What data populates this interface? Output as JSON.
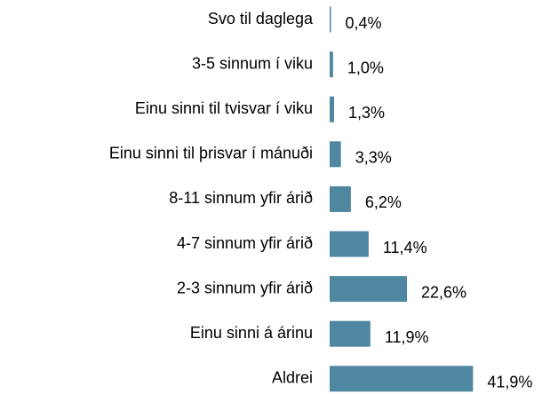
{
  "chart_data": {
    "type": "bar",
    "orientation": "horizontal",
    "color": "#4f86a0",
    "categories": [
      "Svo til daglega",
      "3-5 sinnum í viku",
      "Einu sinni til tvisvar í viku",
      "Einu sinni til þrisvar í mánuði",
      "8-11 sinnum yfir árið",
      "4-7 sinnum yfir árið",
      "2-3 sinnum yfir árið",
      "Einu sinni á árinu",
      "Aldrei"
    ],
    "values": [
      0.4,
      1.0,
      1.3,
      3.3,
      6.2,
      11.4,
      22.6,
      11.9,
      41.9
    ],
    "value_labels": [
      "0,4%",
      "1,0%",
      "1,3%",
      "3,3%",
      "6,2%",
      "11,4%",
      "22,6%",
      "11,9%",
      "41,9%"
    ]
  }
}
